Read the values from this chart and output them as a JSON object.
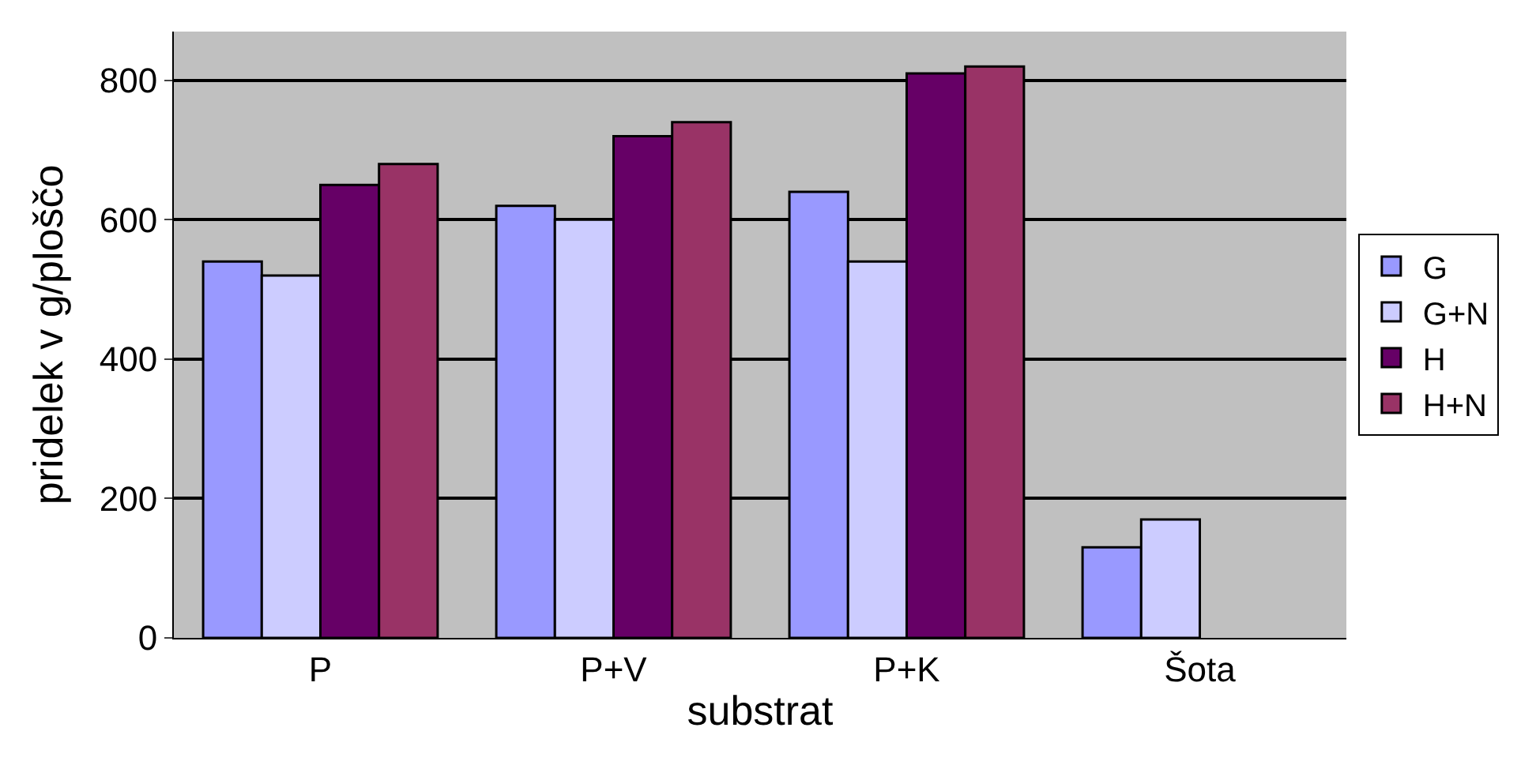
{
  "chart_data": {
    "type": "bar",
    "xlabel": "substrat",
    "ylabel": "pridelek v g/ploščo",
    "categories": [
      "P",
      "P+V",
      "P+K",
      "Šota"
    ],
    "series": [
      {
        "name": "G",
        "color": "#9999ff",
        "values": [
          540,
          620,
          640,
          130
        ]
      },
      {
        "name": "G+N",
        "color": "#ccccff",
        "values": [
          520,
          600,
          540,
          170
        ]
      },
      {
        "name": "H",
        "color": "#660066",
        "values": [
          650,
          720,
          810,
          null
        ]
      },
      {
        "name": "H+N",
        "color": "#993366",
        "values": [
          680,
          740,
          820,
          null
        ]
      }
    ],
    "ylim": [
      0,
      870
    ],
    "yticks": [
      0,
      200,
      400,
      600,
      800
    ],
    "grid": "y",
    "legend": "right"
  }
}
